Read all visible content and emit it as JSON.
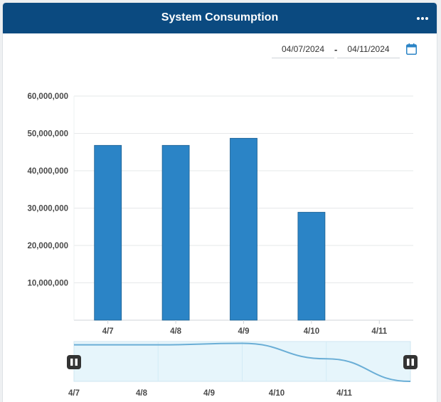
{
  "header": {
    "title": "System Consumption",
    "menu_icon": "more-horizontal-icon"
  },
  "date_range": {
    "start": "04/07/2024",
    "separator": "-",
    "end": "04/11/2024",
    "calendar_icon": "calendar-icon"
  },
  "colors": {
    "header_bg": "#0b4a80",
    "bar": "#2b84c6",
    "navigator_bg": "#e6f5fb",
    "navigator_line": "#6aaed6"
  },
  "chart_data": {
    "type": "bar",
    "categories": [
      "4/7",
      "4/8",
      "4/9",
      "4/10",
      "4/11"
    ],
    "values": [
      46800000,
      46800000,
      48700000,
      28900000,
      null
    ],
    "ylim": [
      0,
      60000000
    ],
    "yticks": [
      "10,000,000",
      "20,000,000",
      "30,000,000",
      "40,000,000",
      "50,000,000",
      "60,000,000"
    ],
    "ytick_values": [
      10000000,
      20000000,
      30000000,
      40000000,
      50000000,
      60000000
    ],
    "grid": true,
    "navigator": {
      "labels": [
        "4/7",
        "4/8",
        "4/9",
        "4/10",
        "4/11"
      ],
      "handle_icon": "pause-icon"
    }
  }
}
